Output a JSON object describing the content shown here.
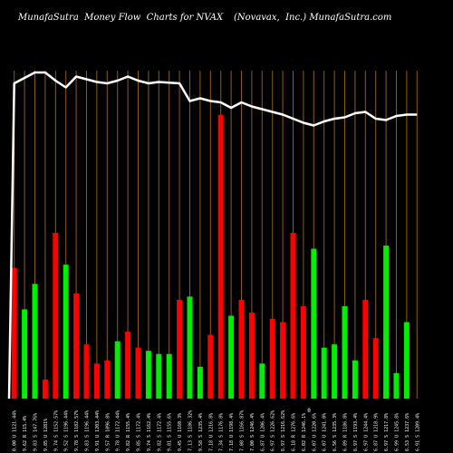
{
  "header": {
    "left": "MunafaSutra  Money Flow  Charts for NVAX",
    "right": "(Novavax,  Inc.) MunafaSutra.com"
  },
  "colors": {
    "background": "#000000",
    "grid": "#8B5A1E",
    "up": "#00EE00",
    "down": "#FF0000",
    "line": "#FFFFFF",
    "text": "#FFFFFF"
  },
  "chart_data": {
    "type": "bar",
    "title": "MunafaSutra  Money Flow  Charts for NVAX",
    "subtitle": "(Novavax,  Inc.) MunafaSutra.com",
    "grid": true,
    "x_mid_label": "0",
    "categories": [
      "0.00 U 1121.44%",
      "9.62 R 115.4%",
      "9.83 S 147.76%",
      "9.85 U 1281%",
      "9.74 S 1152.57%",
      "9.52 S 1196.44%",
      "9.78 S 1182.57%",
      "9.83 S 1196.44%",
      "9.91 U 1203.44%",
      "9.57 R 1096.8%",
      "9.78 U 1172.44%",
      "9.82 R 1155.4%",
      "9.85 S 1172.4%",
      "9.74 S 1162.4%",
      "9.82 S 1172.4%",
      "9.81 S 1155.6%",
      "9.45 U 1160.3%",
      "7.13 S 1186.32%",
      "9.58 S 1235.4%",
      "7.18 U 1216.8%",
      "7.34 S 1176.8%",
      "7.18 U 1198.4%",
      "7.08 S 1166.87%",
      "7.00 S 1246.4%",
      "6.87 U 1206.4%",
      "6.97 S 1226.62%",
      "6.97 S 1216.62%",
      "6.18 R 1276.6%",
      "6.02 R 1246.1%",
      "6.07 U 1220.6%",
      "6.07 U 1241.0%",
      "6.56 S 1235.3%",
      "6.89 R 1186.8%",
      "6.97 S 1193.4%",
      "6.97 U 1244.4%",
      "6.87 U 1218.9%",
      "6.97 S 1217.8%",
      "6.99 U 1245.8%",
      "6.53 S 1237.6%",
      "6.91 S 1209.4%"
    ],
    "series": [
      {
        "kind": "bar",
        "values": [
          0.41,
          0.28,
          0.36,
          0.06,
          0.52,
          0.42,
          0.33,
          0.17,
          0.11,
          0.12,
          0.18,
          0.21,
          0.16,
          0.15,
          0.14,
          0.14,
          0.31,
          0.32,
          0.1,
          0.2,
          0.89,
          0.26,
          0.31,
          0.27,
          0.11,
          0.25,
          0.24,
          0.52,
          0.29,
          0.47,
          0.16,
          0.17,
          0.29,
          0.12,
          0.31,
          0.19,
          0.48,
          0.08,
          0.24,
          0.0
        ],
        "directions": [
          "down",
          "up",
          "up",
          "down",
          "down",
          "up",
          "down",
          "down",
          "down",
          "down",
          "up",
          "down",
          "down",
          "up",
          "up",
          "up",
          "down",
          "up",
          "up",
          "down",
          "down",
          "up",
          "down",
          "down",
          "up",
          "down",
          "down",
          "down",
          "down",
          "up",
          "up",
          "up",
          "up",
          "up",
          "down",
          "down",
          "up",
          "up",
          "up",
          "up"
        ]
      },
      {
        "kind": "line",
        "values": [
          0.92,
          0.96,
          1.0,
          1.0,
          0.94,
          0.89,
          0.97,
          0.95,
          0.93,
          0.92,
          0.94,
          0.97,
          0.94,
          0.92,
          0.93,
          0.925,
          0.92,
          0.79,
          0.81,
          0.79,
          0.78,
          0.74,
          0.78,
          0.75,
          0.73,
          0.71,
          0.69,
          0.66,
          0.63,
          0.61,
          0.64,
          0.66,
          0.67,
          0.7,
          0.71,
          0.66,
          0.65,
          0.68,
          0.69,
          0.69
        ]
      }
    ],
    "ylim": [
      0,
      1
    ]
  }
}
